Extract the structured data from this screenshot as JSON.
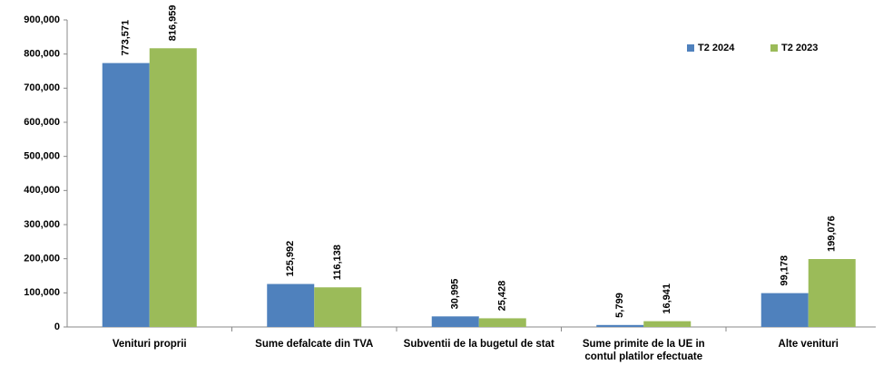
{
  "chart_data": {
    "type": "bar",
    "categories": [
      "Venituri proprii",
      "Sume defalcate din TVA",
      "Subventii de la bugetul de stat",
      "Sume primite de la UE in contul platilor efectuate",
      "Alte venituri"
    ],
    "series": [
      {
        "name": "T2 2024",
        "color": "#4f81bd",
        "values": [
          773571,
          125992,
          30995,
          5799,
          99178
        ],
        "value_labels": [
          "773,571",
          "125,992",
          "30,995",
          "5,799",
          "99,178"
        ]
      },
      {
        "name": "T2 2023",
        "color": "#9bbb59",
        "values": [
          816959,
          116138,
          25428,
          16941,
          199076
        ],
        "value_labels": [
          "816,959",
          "116,138",
          "25,428",
          "16,941",
          "199,076"
        ]
      }
    ],
    "ylim": [
      0,
      900000
    ],
    "yticks": [
      0,
      {
        "value": 100000,
        "label": "100,000"
      },
      {
        "value": 200000,
        "label": "200,000"
      },
      {
        "value": 300000,
        "label": "300,000"
      },
      {
        "value": 400000,
        "label": "400,000"
      },
      {
        "value": 500000,
        "label": "500,000"
      },
      {
        "value": 600000,
        "label": "600,000"
      },
      {
        "value": 700000,
        "label": "700,000"
      },
      {
        "value": 800000,
        "label": "800,000"
      },
      {
        "value": 900000,
        "label": "900,000"
      }
    ],
    "grid": false,
    "legend": "top-right"
  }
}
